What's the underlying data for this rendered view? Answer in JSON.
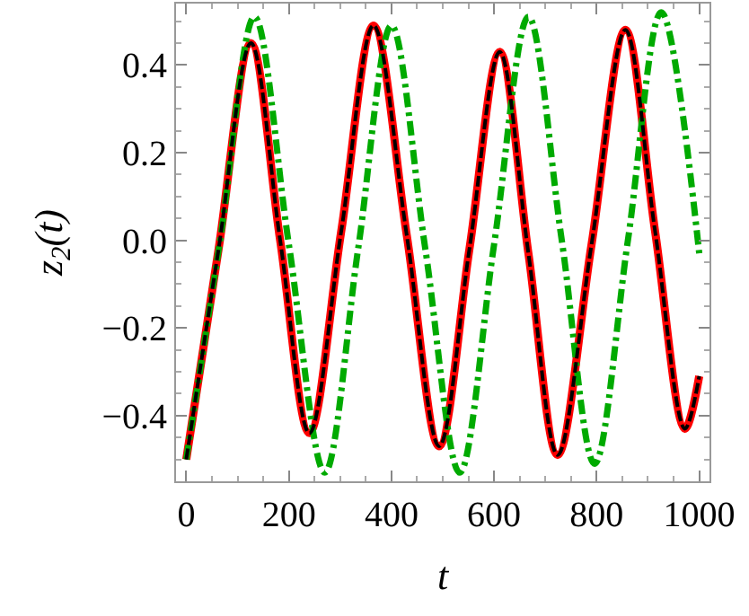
{
  "chart_data": {
    "type": "line",
    "xlabel": "t",
    "ylabel": "z$_{2}$(t)",
    "xlim": [
      -20,
      1020
    ],
    "ylim": [
      -0.55,
      0.54
    ],
    "xticks": [
      0,
      200,
      400,
      600,
      800,
      1000
    ],
    "yticks": [
      {
        "value": -0.4,
        "label": "−0.4"
      },
      {
        "value": -0.2,
        "label": "−0.2"
      },
      {
        "value": 0.0,
        "label": "0.0"
      },
      {
        "value": 0.2,
        "label": "0.2"
      },
      {
        "value": 0.4,
        "label": "0.4"
      }
    ],
    "marker": "none",
    "series": [
      {
        "color": "#ff0000",
        "line_style": "solid",
        "x": [
          0,
          63,
          126,
          183,
          240,
          302,
          365,
          430,
          493,
          552,
          611,
          667,
          724,
          790,
          856,
          914,
          972,
          1000
        ],
        "values": [
          -0.5,
          -0.02,
          0.45,
          0.0,
          -0.44,
          0.02,
          0.49,
          0.01,
          -0.47,
          -0.02,
          0.43,
          -0.03,
          -0.49,
          -0.01,
          0.48,
          0.02,
          -0.43,
          -0.31
        ]
      },
      {
        "color": "#000000",
        "line_style": "dashed",
        "x": [
          0,
          63,
          126,
          183,
          240,
          302,
          365,
          430,
          493,
          552,
          611,
          667,
          724,
          790,
          856,
          914,
          972,
          1000
        ],
        "values": [
          -0.5,
          -0.02,
          0.45,
          0.0,
          -0.44,
          0.02,
          0.49,
          0.01,
          -0.47,
          -0.02,
          0.43,
          -0.03,
          -0.49,
          -0.01,
          0.48,
          0.02,
          -0.43,
          -0.31
        ]
      },
      {
        "color": "#00aa00",
        "line_style": "dashdot",
        "x": [
          0,
          66,
          133,
          200,
          270,
          335,
          400,
          466,
          533,
          600,
          667,
          732,
          796,
          861,
          926,
          1000
        ],
        "values": [
          -0.5,
          0.0,
          0.51,
          -0.01,
          -0.53,
          -0.02,
          0.49,
          -0.02,
          -0.53,
          -0.01,
          0.51,
          0.0,
          -0.51,
          0.0,
          0.52,
          -0.03
        ]
      }
    ]
  }
}
